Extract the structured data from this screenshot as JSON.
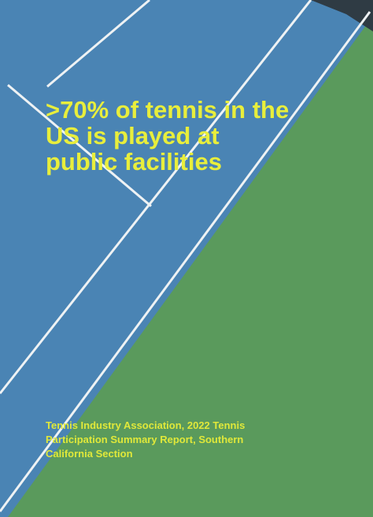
{
  "headline": {
    "lines": [
      ">70% of tennis in the",
      "US is played at",
      "public facilities"
    ]
  },
  "source": {
    "lines": [
      "Tennis Industry Association, 2022 Tennis",
      "Participation Summary Report, Southern",
      "California Section"
    ]
  }
}
